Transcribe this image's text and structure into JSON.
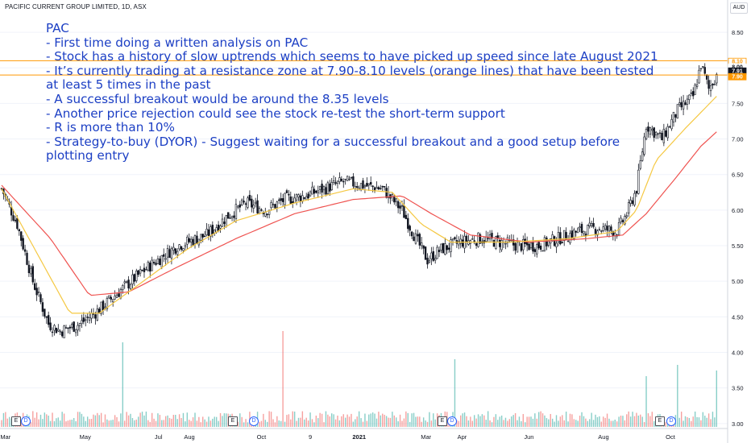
{
  "header": {
    "title": "PACIFIC CURRENT GROUP LIMITED, 1D, ASX",
    "currency": "AUD"
  },
  "notes": [
    "PAC",
    "- First time doing a written analysis on PAC",
    "- Stock has a history of slow uptrends which seems to have picked up speed since late August 2021",
    "- It’s currently trading at a resistance zone at 7.90-8.10 levels (orange lines) that have been tested",
    "at least 5 times in the past",
    "- A successful breakout would be around the 8.35 levels",
    "- Another price rejection could see the stock re-test the short-term support",
    "- R is more than 10%",
    "- Strategy-to-buy (DYOR) - Suggest waiting for a successful breakout and a good setup before",
    "plotting entry"
  ],
  "price_tags": {
    "upper": "8.10",
    "last": "7.91",
    "current": "8.00",
    "lower": "7.90"
  },
  "event_markers": [
    {
      "label": "E",
      "kind": "e"
    },
    {
      "label": "D",
      "kind": "d"
    },
    {
      "label": "E",
      "kind": "e"
    },
    {
      "label": "D",
      "kind": "d"
    },
    {
      "label": "E",
      "kind": "e"
    },
    {
      "label": "D",
      "kind": "d"
    },
    {
      "label": "E",
      "kind": "e"
    },
    {
      "label": "D",
      "kind": "d"
    }
  ],
  "colors": {
    "up": "#131722",
    "down": "#131722",
    "ema_fast": "#f5c842",
    "ema_slow": "#ef5350",
    "resistance": "#ff9800",
    "volume": "#26a69a",
    "volume_down": "#ef5350",
    "annotation": "#1c3fc4",
    "axis_text": "#131722"
  },
  "chart_data": {
    "type": "candlestick",
    "title": "PACIFIC CURRENT GROUP LIMITED, 1D, ASX",
    "y_axis": {
      "ticks": [
        3.0,
        3.5,
        4.0,
        4.5,
        5.0,
        5.5,
        6.0,
        6.5,
        7.0,
        7.5,
        8.0,
        8.5
      ],
      "tick_labels": [
        "3.00",
        "3.50",
        "4.00",
        "4.50",
        "5.00",
        "5.50",
        "6.00",
        "6.50",
        "7.00",
        "7.50",
        "8.00",
        "8.50"
      ],
      "ylim": [
        2.93,
        8.75
      ],
      "unit": "AUD"
    },
    "x_axis": {
      "tick_labels": [
        "Mar",
        "May",
        "Jul",
        "Aug",
        "Oct",
        "9",
        "2021",
        "Mar",
        "Apr",
        "Jun",
        "Aug",
        "Oct"
      ]
    },
    "resistance_levels": [
      8.1,
      7.9
    ],
    "close_path": [
      {
        "t": 0,
        "v": 6.3
      },
      {
        "t": 8,
        "v": 5.8
      },
      {
        "t": 16,
        "v": 5.0
      },
      {
        "t": 24,
        "v": 4.4
      },
      {
        "t": 30,
        "v": 4.3
      },
      {
        "t": 40,
        "v": 4.4
      },
      {
        "t": 50,
        "v": 4.6
      },
      {
        "t": 62,
        "v": 4.9
      },
      {
        "t": 75,
        "v": 5.2
      },
      {
        "t": 90,
        "v": 5.5
      },
      {
        "t": 105,
        "v": 5.65
      },
      {
        "t": 115,
        "v": 5.9
      },
      {
        "t": 125,
        "v": 6.1
      },
      {
        "t": 135,
        "v": 6.0
      },
      {
        "t": 145,
        "v": 6.15
      },
      {
        "t": 155,
        "v": 6.2
      },
      {
        "t": 165,
        "v": 6.3
      },
      {
        "t": 175,
        "v": 6.4
      },
      {
        "t": 185,
        "v": 6.35
      },
      {
        "t": 195,
        "v": 6.3
      },
      {
        "t": 205,
        "v": 6.0
      },
      {
        "t": 212,
        "v": 5.6
      },
      {
        "t": 218,
        "v": 5.3
      },
      {
        "t": 225,
        "v": 5.45
      },
      {
        "t": 235,
        "v": 5.55
      },
      {
        "t": 245,
        "v": 5.6
      },
      {
        "t": 255,
        "v": 5.55
      },
      {
        "t": 265,
        "v": 5.5
      },
      {
        "t": 275,
        "v": 5.5
      },
      {
        "t": 285,
        "v": 5.6
      },
      {
        "t": 295,
        "v": 5.7
      },
      {
        "t": 305,
        "v": 5.75
      },
      {
        "t": 315,
        "v": 5.7
      },
      {
        "t": 320,
        "v": 5.95
      },
      {
        "t": 325,
        "v": 6.3
      },
      {
        "t": 330,
        "v": 7.2
      },
      {
        "t": 338,
        "v": 7.0
      },
      {
        "t": 346,
        "v": 7.4
      },
      {
        "t": 354,
        "v": 7.6
      },
      {
        "t": 358,
        "v": 8.05
      },
      {
        "t": 362,
        "v": 7.7
      },
      {
        "t": 366,
        "v": 7.91
      }
    ],
    "ema_fast_path": [
      {
        "t": 0,
        "v": 6.3
      },
      {
        "t": 20,
        "v": 5.3
      },
      {
        "t": 35,
        "v": 4.55
      },
      {
        "t": 50,
        "v": 4.55
      },
      {
        "t": 70,
        "v": 4.95
      },
      {
        "t": 95,
        "v": 5.45
      },
      {
        "t": 120,
        "v": 5.85
      },
      {
        "t": 150,
        "v": 6.1
      },
      {
        "t": 180,
        "v": 6.3
      },
      {
        "t": 200,
        "v": 6.25
      },
      {
        "t": 215,
        "v": 5.8
      },
      {
        "t": 230,
        "v": 5.55
      },
      {
        "t": 260,
        "v": 5.55
      },
      {
        "t": 290,
        "v": 5.6
      },
      {
        "t": 315,
        "v": 5.7
      },
      {
        "t": 325,
        "v": 6.0
      },
      {
        "t": 335,
        "v": 6.7
      },
      {
        "t": 350,
        "v": 7.15
      },
      {
        "t": 366,
        "v": 7.6
      }
    ],
    "ema_slow_path": [
      {
        "t": 0,
        "v": 6.35
      },
      {
        "t": 25,
        "v": 5.6
      },
      {
        "t": 45,
        "v": 4.8
      },
      {
        "t": 65,
        "v": 4.85
      },
      {
        "t": 90,
        "v": 5.2
      },
      {
        "t": 120,
        "v": 5.6
      },
      {
        "t": 150,
        "v": 5.95
      },
      {
        "t": 180,
        "v": 6.15
      },
      {
        "t": 205,
        "v": 6.2
      },
      {
        "t": 220,
        "v": 5.95
      },
      {
        "t": 240,
        "v": 5.65
      },
      {
        "t": 270,
        "v": 5.55
      },
      {
        "t": 300,
        "v": 5.6
      },
      {
        "t": 318,
        "v": 5.65
      },
      {
        "t": 330,
        "v": 5.95
      },
      {
        "t": 345,
        "v": 6.45
      },
      {
        "t": 358,
        "v": 6.9
      },
      {
        "t": 366,
        "v": 7.1
      }
    ],
    "volume_spikes": [
      {
        "t": 62,
        "v": 0.75
      },
      {
        "t": 144,
        "v": 0.85
      },
      {
        "t": 232,
        "v": 0.6
      },
      {
        "t": 330,
        "v": 0.45
      },
      {
        "t": 346,
        "v": 0.55
      },
      {
        "t": 366,
        "v": 0.5
      }
    ]
  }
}
